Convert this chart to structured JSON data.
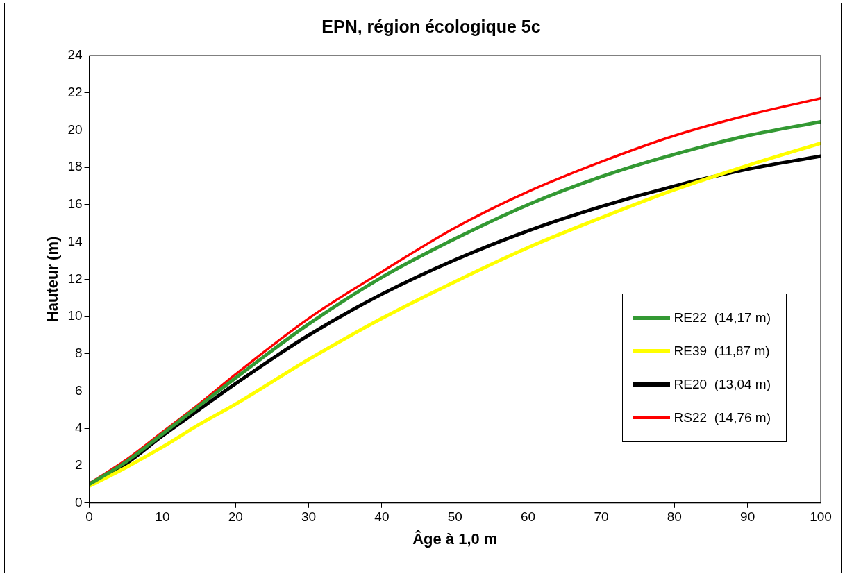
{
  "chart_data": {
    "type": "line",
    "title": "EPN, région écologique 5c",
    "xlabel": "Âge à 1,0 m",
    "ylabel": "Hauteur (m)",
    "x": [
      0,
      5,
      10,
      15,
      20,
      30,
      40,
      50,
      60,
      70,
      80,
      90,
      100
    ],
    "series": [
      {
        "name": "RE22  (14,17 m)",
        "color": "#339933",
        "values": [
          1.0,
          2.2,
          3.7,
          5.2,
          6.7,
          9.6,
          12.1,
          14.17,
          16.0,
          17.5,
          18.7,
          19.7,
          20.45
        ]
      },
      {
        "name": "RE39  (11,87 m)",
        "color": "#ffff00",
        "values": [
          0.9,
          1.9,
          3.0,
          4.2,
          5.3,
          7.7,
          9.9,
          11.87,
          13.7,
          15.3,
          16.8,
          18.1,
          19.3
        ]
      },
      {
        "name": "RE20  (13,04 m)",
        "color": "#000000",
        "values": [
          1.0,
          2.1,
          3.6,
          5.0,
          6.4,
          9.0,
          11.2,
          13.04,
          14.6,
          15.9,
          17.0,
          17.9,
          18.6
        ]
      },
      {
        "name": "RS22  (14,76 m)",
        "color": "#ff0000",
        "values": [
          1.05,
          2.3,
          3.8,
          5.3,
          6.9,
          9.9,
          12.4,
          14.76,
          16.7,
          18.3,
          19.7,
          20.8,
          21.7
        ]
      }
    ],
    "xlim": [
      0,
      100
    ],
    "xticks": [
      0,
      10,
      20,
      30,
      40,
      50,
      60,
      70,
      80,
      90,
      100
    ],
    "ylim": [
      0,
      24
    ],
    "yticks": [
      0,
      2,
      4,
      6,
      8,
      10,
      12,
      14,
      16,
      18,
      20,
      22,
      24
    ],
    "legend": "bottom right",
    "marker": "none",
    "line_style": "solid"
  }
}
